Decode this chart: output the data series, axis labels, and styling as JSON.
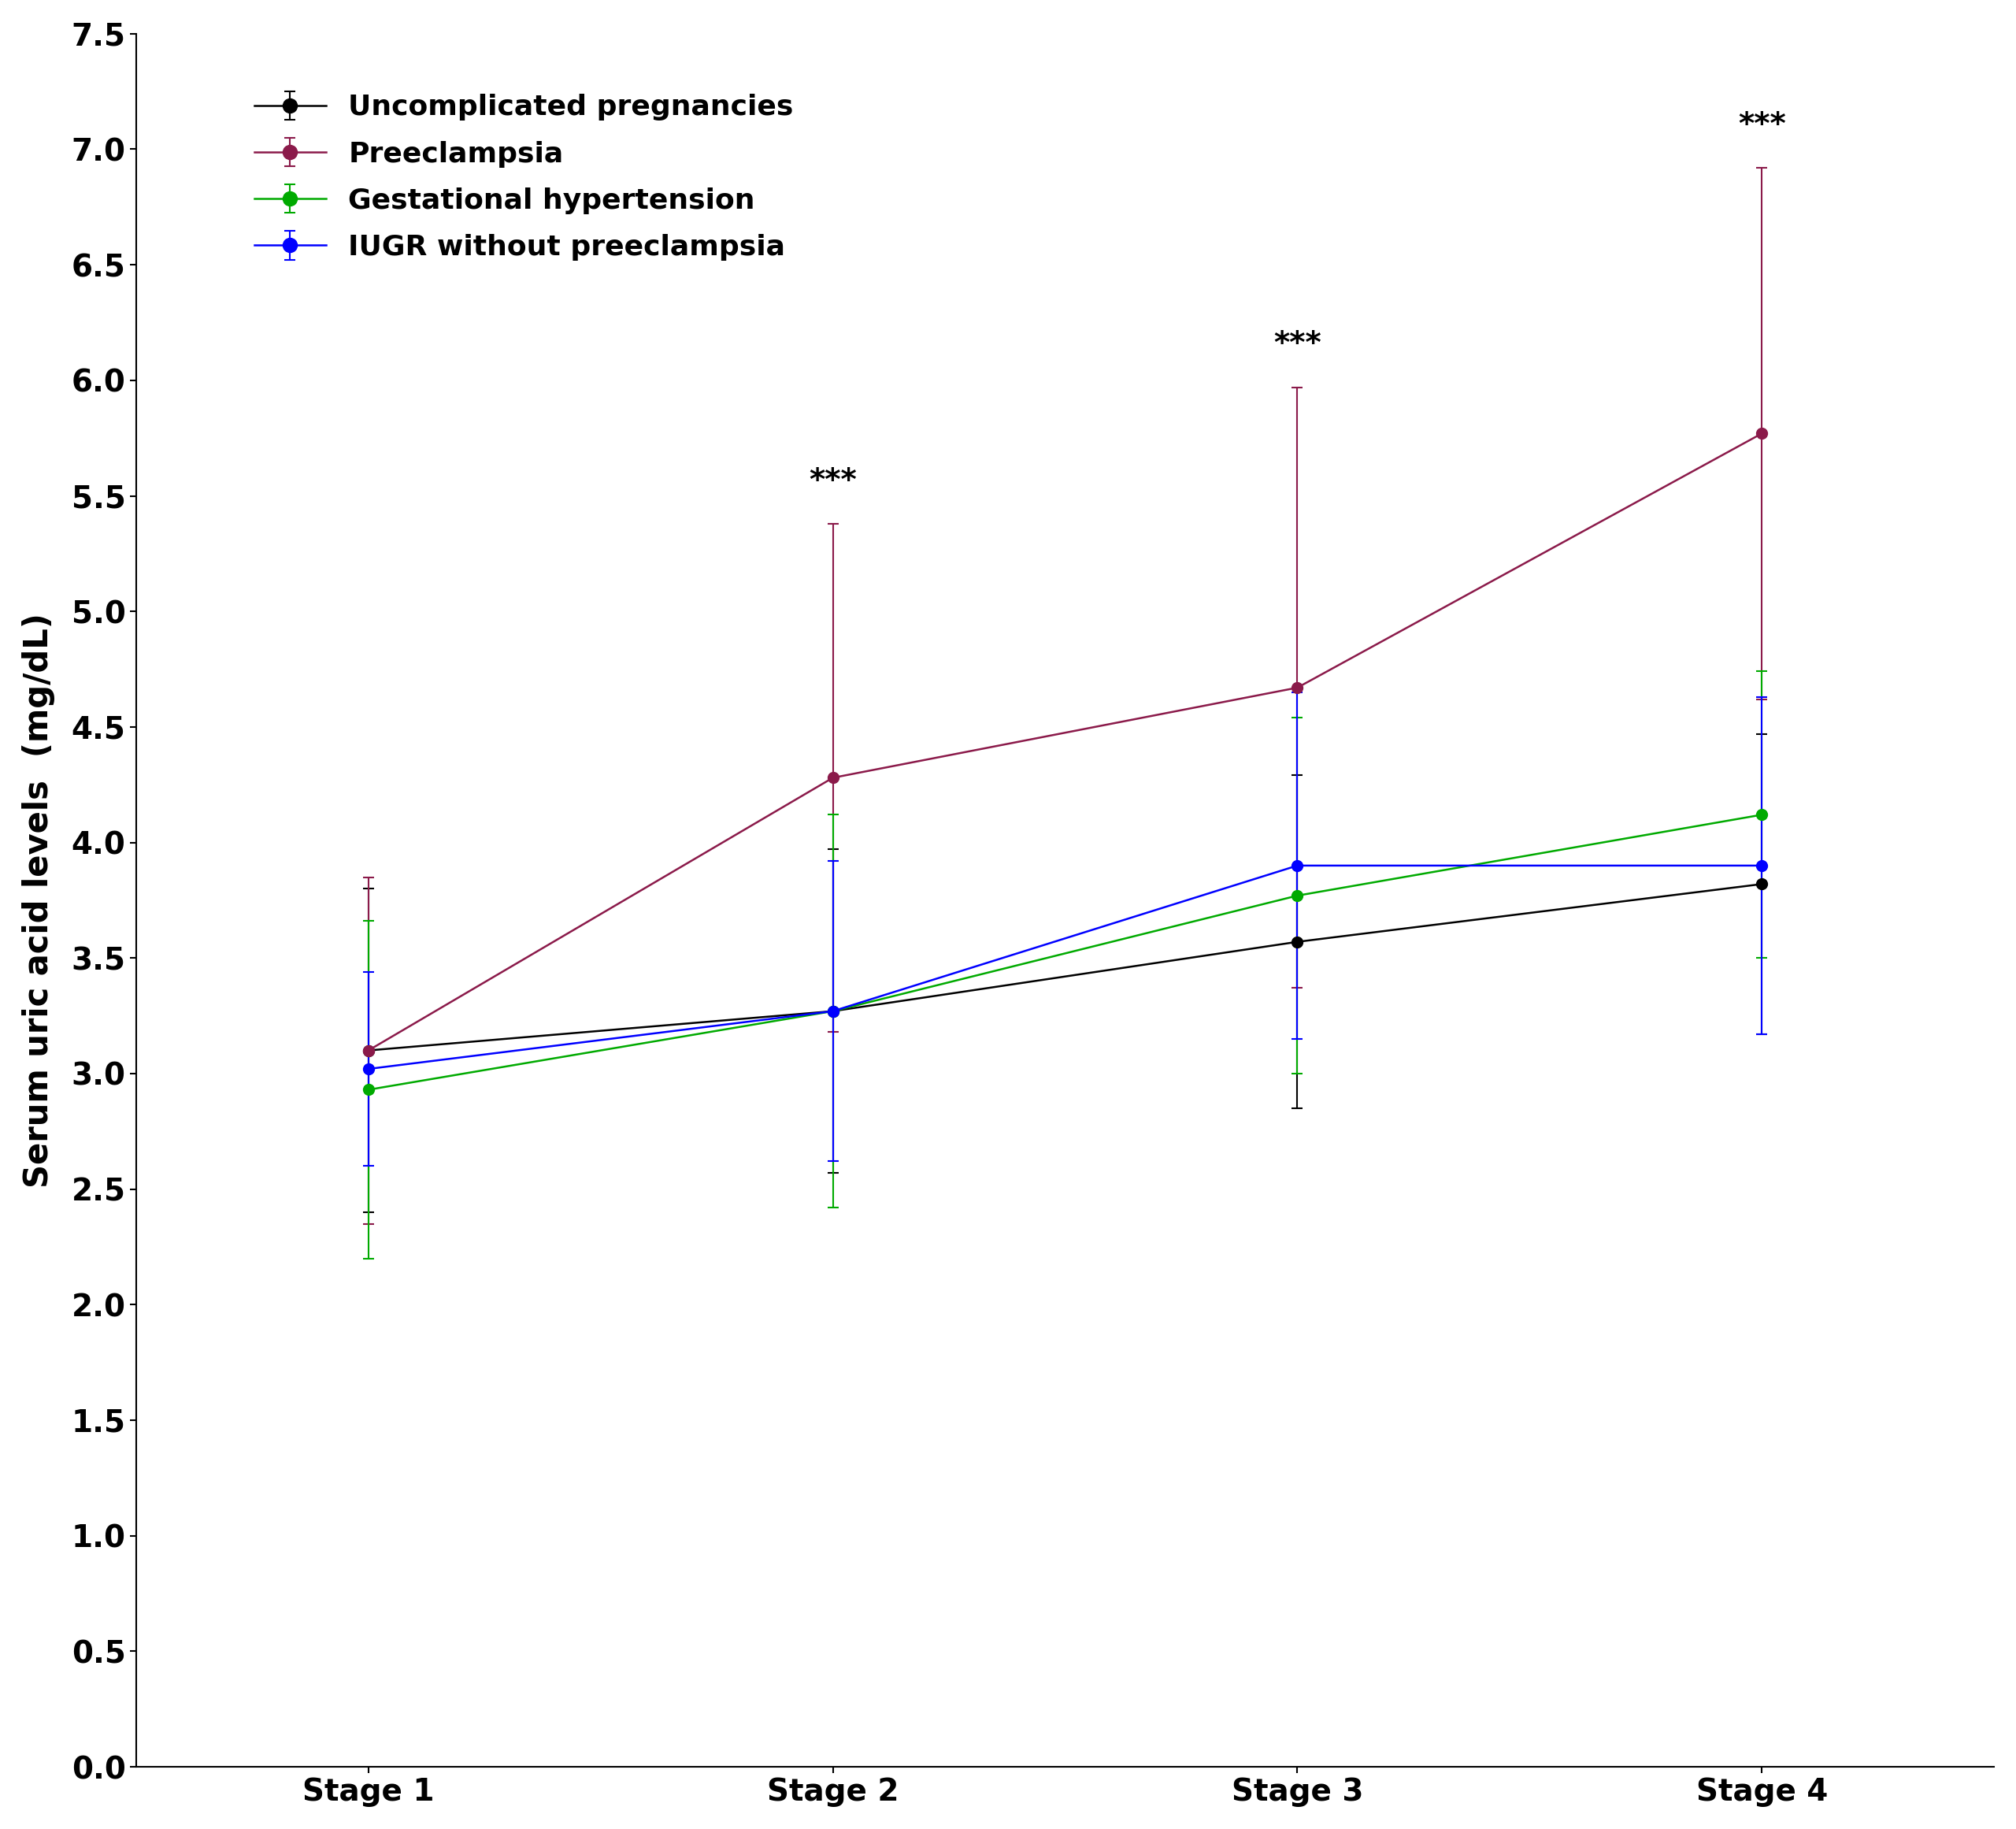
{
  "x_labels": [
    "Stage 1",
    "Stage 2",
    "Stage 3",
    "Stage 4"
  ],
  "x_values": [
    1,
    2,
    3,
    4
  ],
  "series": [
    {
      "label": "Uncomplicated pregnancies",
      "color": "#000000",
      "y": [
        3.1,
        3.27,
        3.57,
        3.82
      ],
      "yerr_low": [
        0.7,
        0.7,
        0.72,
        0.65
      ],
      "yerr_high": [
        0.7,
        0.7,
        0.72,
        0.65
      ]
    },
    {
      "label": "Preeclampsia",
      "color": "#8B1A4A",
      "y": [
        3.1,
        4.28,
        4.67,
        5.77
      ],
      "yerr_low": [
        0.75,
        1.1,
        1.3,
        1.15
      ],
      "yerr_high": [
        0.75,
        1.1,
        1.3,
        1.15
      ]
    },
    {
      "label": "Gestational hypertension",
      "color": "#00AA00",
      "y": [
        2.93,
        3.27,
        3.77,
        4.12
      ],
      "yerr_low": [
        0.73,
        0.85,
        0.77,
        0.62
      ],
      "yerr_high": [
        0.73,
        0.85,
        0.77,
        0.62
      ]
    },
    {
      "label": "IUGR without preeclampsia",
      "color": "#0000FF",
      "y": [
        3.02,
        3.27,
        3.9,
        3.9
      ],
      "yerr_low": [
        0.42,
        0.65,
        0.75,
        0.73
      ],
      "yerr_high": [
        0.42,
        0.65,
        0.75,
        0.73
      ]
    }
  ],
  "significance": [
    {
      "x": 2,
      "series_idx": 1,
      "text": "***"
    },
    {
      "x": 3,
      "series_idx": 1,
      "text": "***"
    },
    {
      "x": 4,
      "series_idx": 1,
      "text": "***"
    }
  ],
  "ylabel": "Serum uric acid levels  (mg/dL)",
  "ylim": [
    0.0,
    7.5
  ],
  "ytick_step": 0.5,
  "background_color": "#ffffff",
  "marker_size": 10,
  "linewidth": 1.8,
  "capsize": 5,
  "elinewidth": 1.5
}
